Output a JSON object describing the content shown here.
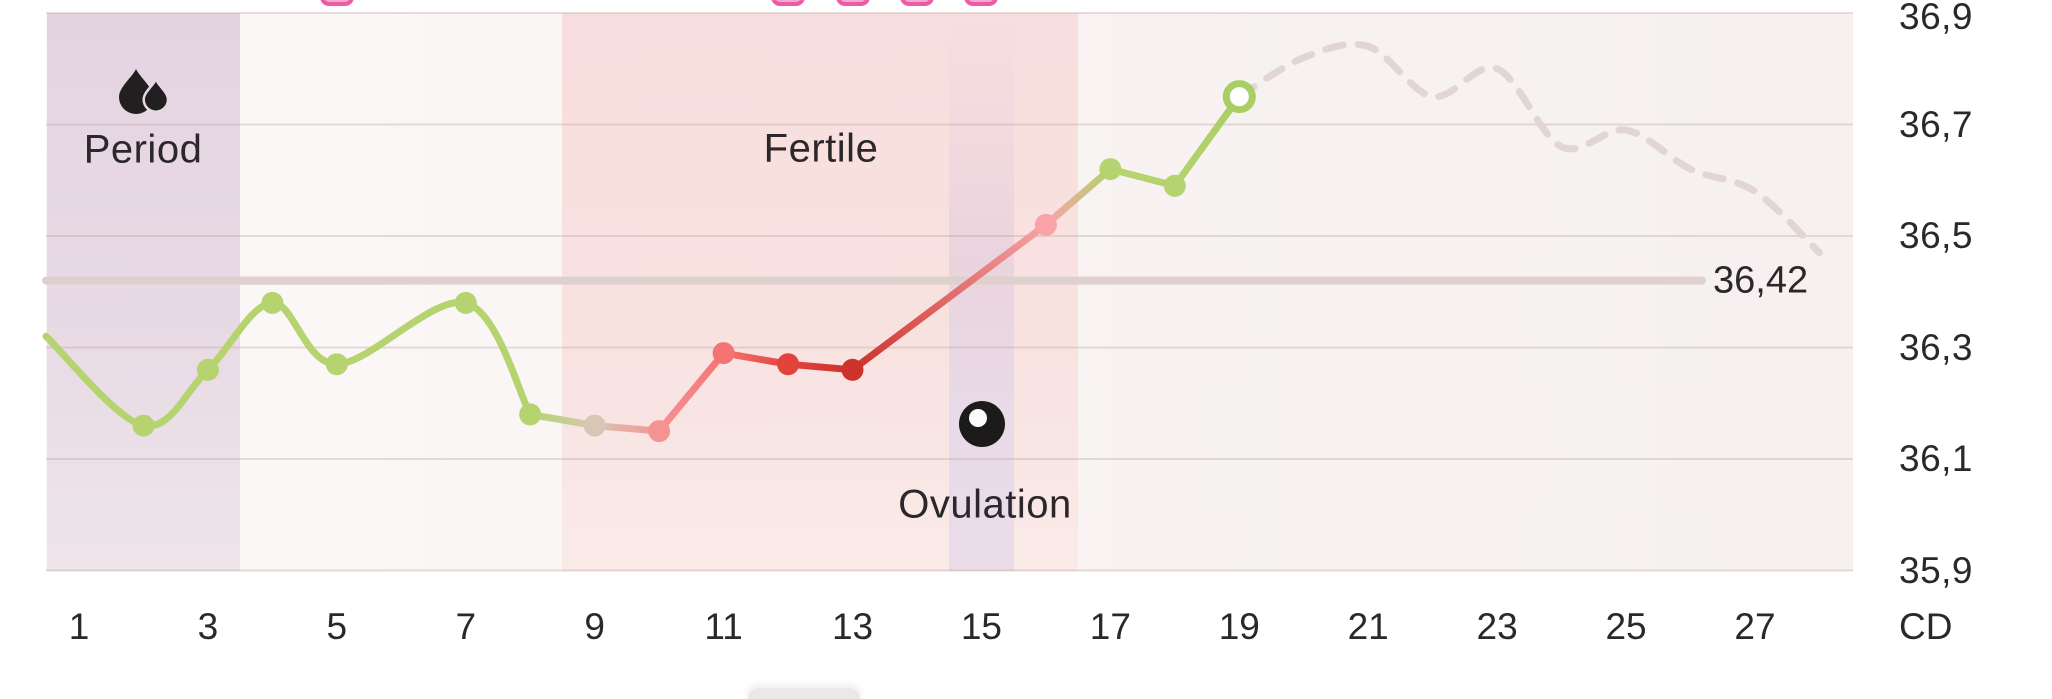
{
  "colors": {
    "text": "#2b272a",
    "grid": "#e7dbd9",
    "reference_line": "#ddd0cd",
    "predicted_line": "#e2d6d4",
    "green": "#b5d36e",
    "marker_pink": "#ec5ca4",
    "plot_background": "#f9f5f4"
  },
  "chart_data": {
    "type": "line",
    "x_axis_unit": "CD",
    "x_ticks": [
      1,
      3,
      5,
      7,
      9,
      11,
      13,
      15,
      17,
      19,
      21,
      23,
      25,
      27
    ],
    "x_days_range": [
      1,
      28
    ],
    "y_ticks": [
      {
        "label": "36,9",
        "value": 36.9
      },
      {
        "label": "36,7",
        "value": 36.7
      },
      {
        "label": "36,5",
        "value": 36.5
      },
      {
        "label": "36,3",
        "value": 36.3
      },
      {
        "label": "36,1",
        "value": 36.1
      },
      {
        "label": "35,9",
        "value": 35.9
      }
    ],
    "ylim": [
      35.9,
      36.9
    ],
    "grid": true,
    "legend": false,
    "reference_line": {
      "label": "36,42",
      "value": 36.42
    },
    "bands": [
      {
        "id": "period",
        "label": "Period",
        "start_day": 1,
        "end_day": 3,
        "icon": "drops-icon"
      },
      {
        "id": "fertile",
        "label": "Fertile",
        "start_day": 9,
        "end_day": 16
      },
      {
        "id": "ovulation",
        "label": "Ovulation",
        "start_day": 15,
        "end_day": 15,
        "icon": "egg-icon"
      }
    ],
    "series": [
      {
        "name": "measured",
        "style": "solid",
        "points": [
          {
            "day": 1,
            "temp": 36.32,
            "dot": false,
            "edge_clip": true,
            "color": "#b5d36e"
          },
          {
            "day": 2,
            "temp": 36.16,
            "dot": true,
            "color": "#b5d36e"
          },
          {
            "day": 3,
            "temp": 36.26,
            "dot": true,
            "color": "#b5d36e"
          },
          {
            "day": 4,
            "temp": 36.38,
            "dot": true,
            "color": "#b5d36e"
          },
          {
            "day": 5,
            "temp": 36.27,
            "dot": true,
            "color": "#b5d36e"
          },
          {
            "day": 7,
            "temp": 36.38,
            "dot": true,
            "color": "#b5d36e"
          },
          {
            "day": 8,
            "temp": 36.18,
            "dot": true,
            "color": "#b5d36e"
          },
          {
            "day": 9,
            "temp": 36.16,
            "dot": true,
            "color": "#d7c7b4"
          },
          {
            "day": 10,
            "temp": 36.15,
            "dot": true,
            "color": "#f59393"
          },
          {
            "day": 11,
            "temp": 36.29,
            "dot": true,
            "color": "#f47474"
          },
          {
            "day": 12,
            "temp": 36.27,
            "dot": true,
            "color": "#e2443c"
          },
          {
            "day": 13,
            "temp": 36.26,
            "dot": true,
            "color": "#cb332b"
          },
          {
            "day": 16,
            "temp": 36.52,
            "dot": true,
            "color": "#f7a3a7"
          },
          {
            "day": 17,
            "temp": 36.62,
            "dot": true,
            "color": "#b5d36e"
          },
          {
            "day": 18,
            "temp": 36.59,
            "dot": true,
            "color": "#b5d36e"
          },
          {
            "day": 19,
            "temp": 36.75,
            "dot": "open",
            "color": "#a9cf63"
          }
        ]
      },
      {
        "name": "predicted",
        "style": "dashed",
        "color": "#e2d6d4",
        "points": [
          {
            "day": 19,
            "temp": 36.75
          },
          {
            "day": 20,
            "temp": 36.82
          },
          {
            "day": 21,
            "temp": 36.84
          },
          {
            "day": 22,
            "temp": 36.75
          },
          {
            "day": 23,
            "temp": 36.8
          },
          {
            "day": 24,
            "temp": 36.66
          },
          {
            "day": 25,
            "temp": 36.69
          },
          {
            "day": 26,
            "temp": 36.62
          },
          {
            "day": 27,
            "temp": 36.58
          },
          {
            "day": 28,
            "temp": 36.47
          }
        ]
      }
    ],
    "event_marker_days": [
      5,
      12,
      13,
      14,
      15
    ]
  }
}
